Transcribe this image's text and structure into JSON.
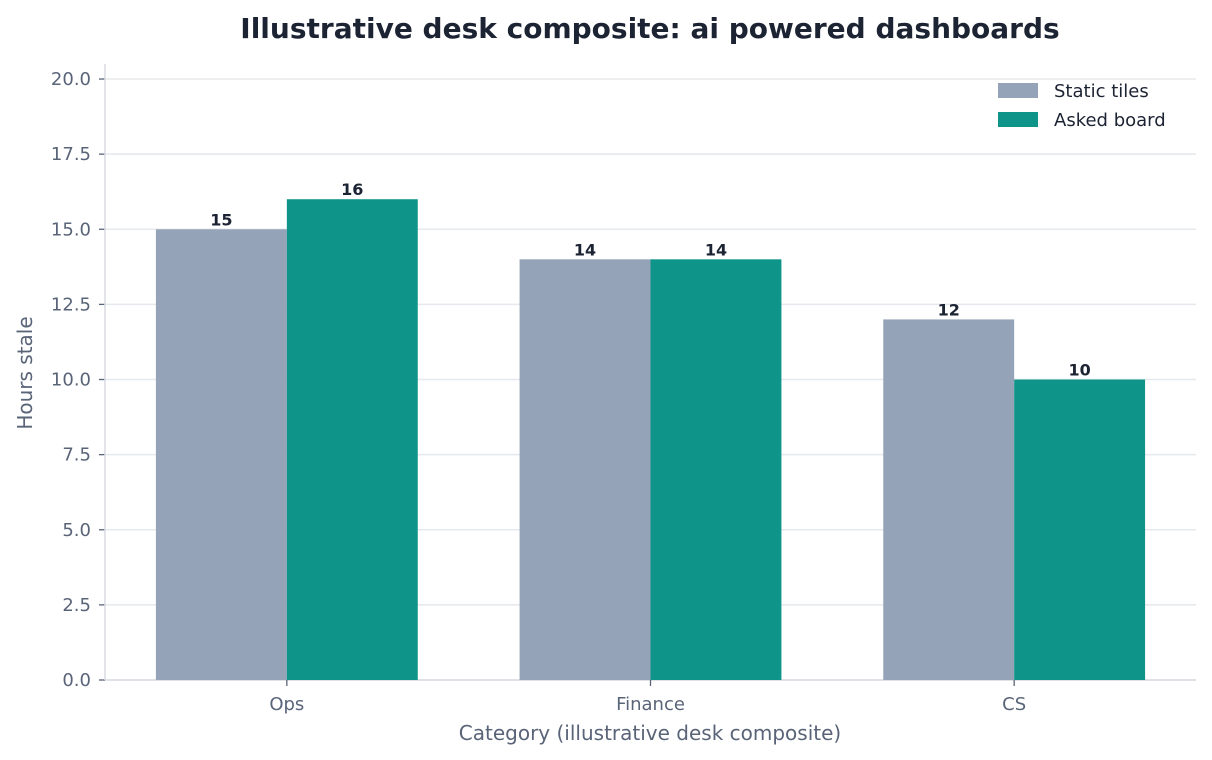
{
  "chart_data": {
    "type": "bar",
    "title": "Illustrative desk composite: ai powered dashboards",
    "xlabel": "Category (illustrative desk composite)",
    "ylabel": "Hours stale",
    "categories": [
      "Ops",
      "Finance",
      "CS"
    ],
    "series": [
      {
        "name": "Static tiles",
        "values": [
          15,
          14,
          12
        ],
        "color": "#95a3b8"
      },
      {
        "name": "Asked board",
        "values": [
          16,
          14,
          10
        ],
        "color": "#0e9488"
      }
    ],
    "ylim": [
      0,
      20.5
    ],
    "yticks": [
      "0.0",
      "2.5",
      "5.0",
      "7.5",
      "10.0",
      "12.5",
      "15.0",
      "17.5",
      "20.0"
    ],
    "grid": true,
    "legend_position": "top-right",
    "data_labels": true
  }
}
